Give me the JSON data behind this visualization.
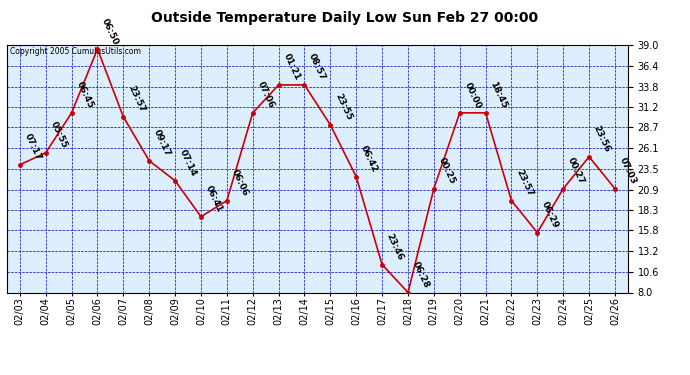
{
  "title": "Outside Temperature Daily Low Sun Feb 27 00:00",
  "copyright": "Copyright 2005 CumulusUtils.com",
  "background_color": "#ffffff",
  "plot_bg_color": "#ddeeff",
  "line_color": "#cc0000",
  "marker_color": "#cc0000",
  "grid_color": "#0000bb",
  "dates": [
    "02/03",
    "02/04",
    "02/05",
    "02/06",
    "02/07",
    "02/08",
    "02/09",
    "02/10",
    "02/11",
    "02/12",
    "02/13",
    "02/14",
    "02/15",
    "02/16",
    "02/17",
    "02/18",
    "02/19",
    "02/20",
    "02/21",
    "02/22",
    "02/23",
    "02/24",
    "02/25",
    "02/26"
  ],
  "values": [
    24.0,
    25.5,
    30.5,
    38.5,
    30.0,
    24.5,
    22.0,
    17.5,
    19.5,
    30.5,
    34.0,
    34.0,
    29.0,
    22.5,
    11.5,
    8.0,
    21.0,
    30.5,
    30.5,
    19.5,
    15.5,
    21.0,
    25.0,
    21.0
  ],
  "annotations": [
    "07:17",
    "05:55",
    "06:45",
    "06:50",
    "23:57",
    "09:17",
    "07:14",
    "06:41",
    "06:06",
    "07:06",
    "01:21",
    "08:57",
    "23:55",
    "06:42",
    "23:46",
    "06:28",
    "00:25",
    "00:00",
    "18:45",
    "23:57",
    "06:29",
    "00:27",
    "23:56",
    "07:03"
  ],
  "ylim": [
    8.0,
    39.0
  ],
  "yticks": [
    8.0,
    10.6,
    13.2,
    15.8,
    18.3,
    20.9,
    23.5,
    26.1,
    28.7,
    31.2,
    33.8,
    36.4,
    39.0
  ],
  "title_fontsize": 10,
  "tick_fontsize": 7,
  "annotation_fontsize": 6.5
}
